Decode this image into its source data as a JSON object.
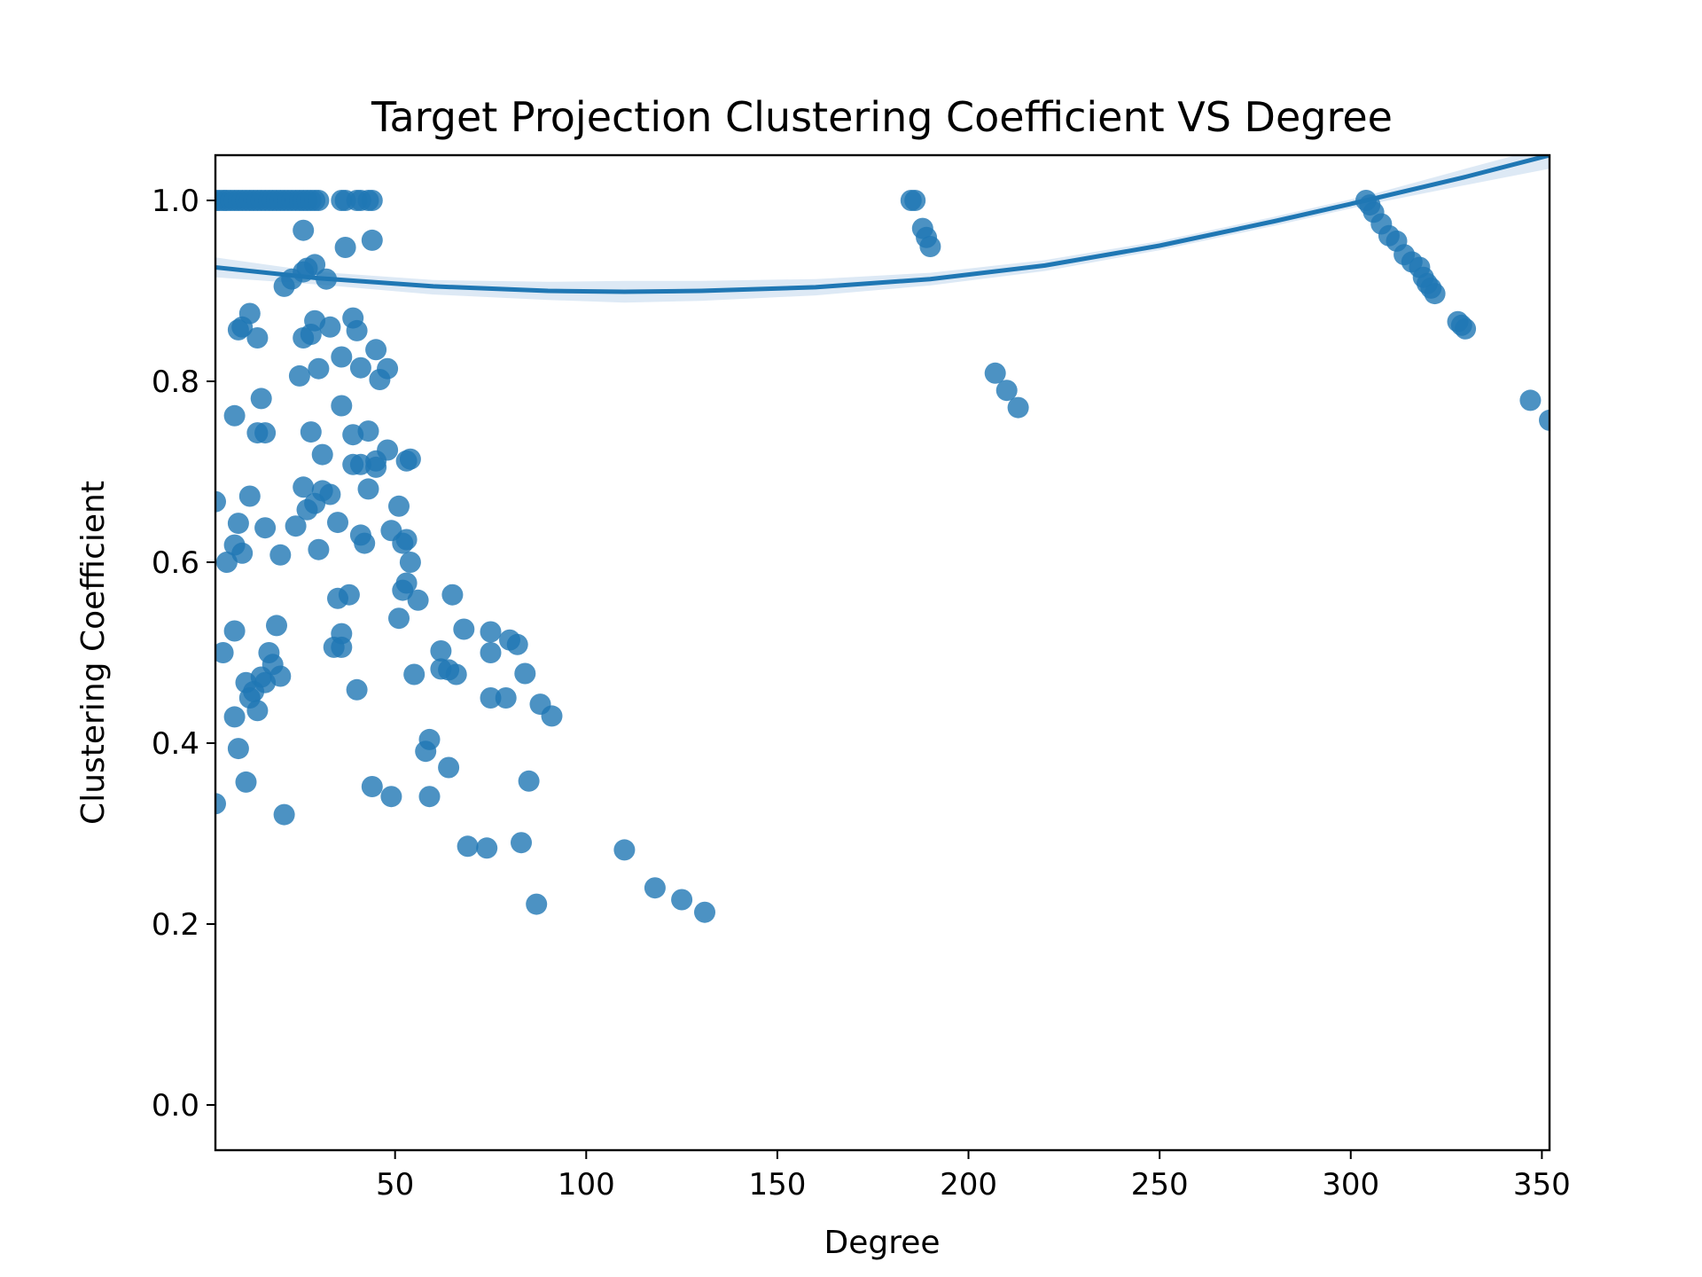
{
  "chart_data": {
    "type": "scatter",
    "title": "Target Projection Clustering Coefficient VS Degree",
    "xlabel": "Degree",
    "ylabel": "Clustering Coefficient",
    "xlim": [
      3,
      352
    ],
    "ylim": [
      -0.05,
      1.05
    ],
    "xticks": [
      50,
      100,
      150,
      200,
      250,
      300,
      350
    ],
    "yticks": [
      0.0,
      0.2,
      0.4,
      0.6,
      0.8,
      1.0
    ],
    "grid": false,
    "legend": "none",
    "colors": {
      "points": "#1f77b4",
      "fit_line": "#1f77b4",
      "ci_band": "#c6dbef"
    },
    "points": [
      [
        3,
        1.0
      ],
      [
        4,
        1.0
      ],
      [
        5,
        1.0
      ],
      [
        6,
        1.0
      ],
      [
        7,
        1.0
      ],
      [
        8,
        1.0
      ],
      [
        9,
        1.0
      ],
      [
        10,
        1.0
      ],
      [
        11,
        1.0
      ],
      [
        12,
        1.0
      ],
      [
        13,
        1.0
      ],
      [
        14,
        1.0
      ],
      [
        15,
        1.0
      ],
      [
        16,
        1.0
      ],
      [
        17,
        1.0
      ],
      [
        18,
        1.0
      ],
      [
        19,
        1.0
      ],
      [
        20,
        1.0
      ],
      [
        21,
        1.0
      ],
      [
        22,
        1.0
      ],
      [
        23,
        1.0
      ],
      [
        24,
        1.0
      ],
      [
        25,
        1.0
      ],
      [
        26,
        1.0
      ],
      [
        27,
        1.0
      ],
      [
        28,
        1.0
      ],
      [
        29,
        1.0
      ],
      [
        30,
        1.0
      ],
      [
        36,
        1.0
      ],
      [
        37,
        1.0
      ],
      [
        40,
        1.0
      ],
      [
        41,
        1.0
      ],
      [
        43,
        1.0
      ],
      [
        44,
        1.0
      ],
      [
        26,
        0.967
      ],
      [
        44,
        0.956
      ],
      [
        37,
        0.948
      ],
      [
        29,
        0.929
      ],
      [
        27,
        0.925
      ],
      [
        26,
        0.921
      ],
      [
        23,
        0.913
      ],
      [
        32,
        0.913
      ],
      [
        21,
        0.905
      ],
      [
        29,
        0.867
      ],
      [
        39,
        0.87
      ],
      [
        9,
        0.857
      ],
      [
        10,
        0.86
      ],
      [
        12,
        0.875
      ],
      [
        14,
        0.848
      ],
      [
        26,
        0.848
      ],
      [
        28,
        0.852
      ],
      [
        33,
        0.86
      ],
      [
        40,
        0.856
      ],
      [
        36,
        0.827
      ],
      [
        41,
        0.815
      ],
      [
        45,
        0.835
      ],
      [
        48,
        0.814
      ],
      [
        30,
        0.814
      ],
      [
        25,
        0.806
      ],
      [
        46,
        0.802
      ],
      [
        15,
        0.781
      ],
      [
        8,
        0.762
      ],
      [
        36,
        0.773
      ],
      [
        14,
        0.743
      ],
      [
        16,
        0.743
      ],
      [
        28,
        0.744
      ],
      [
        39,
        0.741
      ],
      [
        43,
        0.745
      ],
      [
        31,
        0.719
      ],
      [
        48,
        0.724
      ],
      [
        45,
        0.712
      ],
      [
        54,
        0.714
      ],
      [
        53,
        0.712
      ],
      [
        39,
        0.708
      ],
      [
        41,
        0.708
      ],
      [
        45,
        0.705
      ],
      [
        26,
        0.683
      ],
      [
        31,
        0.679
      ],
      [
        33,
        0.675
      ],
      [
        43,
        0.681
      ],
      [
        12,
        0.673
      ],
      [
        3,
        0.667
      ],
      [
        29,
        0.665
      ],
      [
        27,
        0.658
      ],
      [
        51,
        0.662
      ],
      [
        9,
        0.643
      ],
      [
        16,
        0.638
      ],
      [
        24,
        0.64
      ],
      [
        35,
        0.644
      ],
      [
        49,
        0.635
      ],
      [
        41,
        0.63
      ],
      [
        53,
        0.625
      ],
      [
        52,
        0.621
      ],
      [
        8,
        0.619
      ],
      [
        30,
        0.614
      ],
      [
        10,
        0.61
      ],
      [
        20,
        0.608
      ],
      [
        42,
        0.621
      ],
      [
        6,
        0.6
      ],
      [
        54,
        0.6
      ],
      [
        53,
        0.577
      ],
      [
        52,
        0.569
      ],
      [
        38,
        0.564
      ],
      [
        35,
        0.56
      ],
      [
        56,
        0.558
      ],
      [
        65,
        0.564
      ],
      [
        51,
        0.538
      ],
      [
        8,
        0.524
      ],
      [
        19,
        0.53
      ],
      [
        36,
        0.521
      ],
      [
        68,
        0.526
      ],
      [
        75,
        0.523
      ],
      [
        80,
        0.514
      ],
      [
        82,
        0.509
      ],
      [
        34,
        0.506
      ],
      [
        36,
        0.506
      ],
      [
        5,
        0.5
      ],
      [
        17,
        0.5
      ],
      [
        62,
        0.502
      ],
      [
        75,
        0.5
      ],
      [
        18,
        0.487
      ],
      [
        20,
        0.474
      ],
      [
        62,
        0.482
      ],
      [
        64,
        0.481
      ],
      [
        66,
        0.476
      ],
      [
        55,
        0.476
      ],
      [
        84,
        0.477
      ],
      [
        15,
        0.473
      ],
      [
        16,
        0.467
      ],
      [
        11,
        0.467
      ],
      [
        13,
        0.457
      ],
      [
        12,
        0.45
      ],
      [
        40,
        0.459
      ],
      [
        75,
        0.45
      ],
      [
        79,
        0.45
      ],
      [
        14,
        0.436
      ],
      [
        8,
        0.429
      ],
      [
        88,
        0.443
      ],
      [
        91,
        0.43
      ],
      [
        9,
        0.394
      ],
      [
        59,
        0.404
      ],
      [
        58,
        0.391
      ],
      [
        64,
        0.373
      ],
      [
        11,
        0.357
      ],
      [
        44,
        0.352
      ],
      [
        49,
        0.341
      ],
      [
        59,
        0.341
      ],
      [
        85,
        0.358
      ],
      [
        3,
        0.333
      ],
      [
        21,
        0.321
      ],
      [
        69,
        0.286
      ],
      [
        74,
        0.284
      ],
      [
        83,
        0.29
      ],
      [
        110,
        0.282
      ],
      [
        118,
        0.24
      ],
      [
        125,
        0.227
      ],
      [
        131,
        0.213
      ],
      [
        87,
        0.222
      ],
      [
        185,
        1.0
      ],
      [
        186,
        1.0
      ],
      [
        188,
        0.969
      ],
      [
        189,
        0.959
      ],
      [
        190,
        0.949
      ],
      [
        207,
        0.809
      ],
      [
        210,
        0.79
      ],
      [
        213,
        0.771
      ],
      [
        304,
        1.0
      ],
      [
        305,
        0.995
      ],
      [
        306,
        0.987
      ],
      [
        308,
        0.974
      ],
      [
        310,
        0.961
      ],
      [
        312,
        0.955
      ],
      [
        314,
        0.94
      ],
      [
        316,
        0.932
      ],
      [
        318,
        0.926
      ],
      [
        319,
        0.915
      ],
      [
        320,
        0.908
      ],
      [
        321,
        0.903
      ],
      [
        322,
        0.897
      ],
      [
        328,
        0.866
      ],
      [
        329,
        0.862
      ],
      [
        330,
        0.858
      ],
      [
        347,
        0.779
      ],
      [
        352,
        0.757
      ]
    ],
    "fit_curve": {
      "x": [
        3,
        30,
        60,
        90,
        110,
        130,
        160,
        190,
        220,
        250,
        280,
        304,
        330,
        352
      ],
      "y": [
        0.926,
        0.914,
        0.905,
        0.9,
        0.899,
        0.9,
        0.904,
        0.913,
        0.928,
        0.95,
        0.977,
        1.0,
        1.026,
        1.05
      ],
      "ci_lower": [
        0.915,
        0.907,
        0.896,
        0.89,
        0.887,
        0.889,
        0.895,
        0.906,
        0.922,
        0.945,
        0.972,
        0.995,
        1.017,
        1.035
      ],
      "ci_upper": [
        0.937,
        0.921,
        0.912,
        0.91,
        0.911,
        0.911,
        0.913,
        0.92,
        0.934,
        0.955,
        0.982,
        1.005,
        1.035,
        1.06
      ]
    }
  }
}
